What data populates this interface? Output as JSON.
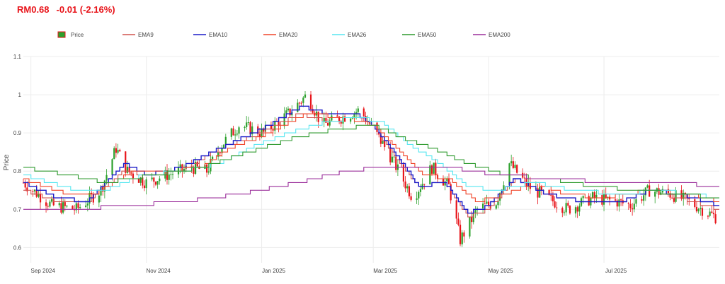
{
  "header": {
    "price": "RM0.68",
    "change": "-0.01 (-2.16%)"
  },
  "colors": {
    "up": "#2ca02c",
    "down": "#e8141a",
    "EMA9": "#d0534f",
    "EMA10": "#1c1cc8",
    "EMA20": "#f0452a",
    "EMA26": "#57e6f0",
    "EMA50": "#2e9a2e",
    "EMA200": "#9b2f9b"
  },
  "chart_data": {
    "type": "line",
    "subtype": "candlestick-with-ema-overlays",
    "title": "",
    "xlabel": "",
    "ylabel": "Price",
    "ylim": [
      0.56,
      1.1
    ],
    "yticks": [
      "0.6",
      "0.7",
      "0.8",
      "0.9",
      "1",
      "1.1"
    ],
    "xrange": [
      "2024-08-28",
      "2025-08-31"
    ],
    "xticks": [
      {
        "date": "2024-09-01",
        "label": "Sep 2024"
      },
      {
        "date": "2024-11-01",
        "label": "Nov 2024"
      },
      {
        "date": "2025-01-01",
        "label": "Jan 2025"
      },
      {
        "date": "2025-03-01",
        "label": "Mar 2025"
      },
      {
        "date": "2025-05-01",
        "label": "May 2025"
      },
      {
        "date": "2025-07-01",
        "label": "Jul 2025"
      }
    ],
    "grid": true,
    "legend_position": "top",
    "legend": [
      "Price",
      "EMA9",
      "EMA10",
      "EMA20",
      "EMA26",
      "EMA50",
      "EMA200"
    ],
    "price_anchors": [
      [
        "2024-08-28",
        0.77
      ],
      [
        "2024-09-12",
        0.71
      ],
      [
        "2024-09-25",
        0.7
      ],
      [
        "2024-10-08",
        0.75
      ],
      [
        "2024-10-16",
        0.86
      ],
      [
        "2024-10-22",
        0.8
      ],
      [
        "2024-11-01",
        0.77
      ],
      [
        "2024-11-12",
        0.79
      ],
      [
        "2024-11-25",
        0.81
      ],
      [
        "2024-12-03",
        0.8
      ],
      [
        "2024-12-11",
        0.87
      ],
      [
        "2024-12-20",
        0.92
      ],
      [
        "2025-01-02",
        0.9
      ],
      [
        "2025-01-15",
        0.95
      ],
      [
        "2025-01-25",
        1.0
      ],
      [
        "2025-02-02",
        0.92
      ],
      [
        "2025-02-12",
        0.94
      ],
      [
        "2025-02-22",
        0.96
      ],
      [
        "2025-03-01",
        0.91
      ],
      [
        "2025-03-10",
        0.84
      ],
      [
        "2025-03-22",
        0.73
      ],
      [
        "2025-04-01",
        0.81
      ],
      [
        "2025-04-10",
        0.76
      ],
      [
        "2025-04-16",
        0.62
      ],
      [
        "2025-04-25",
        0.7
      ],
      [
        "2025-05-05",
        0.72
      ],
      [
        "2025-05-12",
        0.82
      ],
      [
        "2025-05-22",
        0.76
      ],
      [
        "2025-06-01",
        0.73
      ],
      [
        "2025-06-12",
        0.7
      ],
      [
        "2025-06-25",
        0.73
      ],
      [
        "2025-07-08",
        0.72
      ],
      [
        "2025-07-15",
        0.71
      ],
      [
        "2025-07-25",
        0.75
      ],
      [
        "2025-08-05",
        0.74
      ],
      [
        "2025-08-15",
        0.72
      ],
      [
        "2025-08-22",
        0.7
      ],
      [
        "2025-08-29",
        0.68
      ]
    ],
    "series": [
      {
        "name": "EMA9",
        "points": [
          [
            "2024-08-28",
            0.75
          ],
          [
            "2024-09-15",
            0.72
          ],
          [
            "2024-10-01",
            0.72
          ],
          [
            "2024-10-20",
            0.8
          ],
          [
            "2024-11-01",
            0.79
          ],
          [
            "2024-11-20",
            0.8
          ],
          [
            "2024-12-10",
            0.86
          ],
          [
            "2025-01-01",
            0.9
          ],
          [
            "2025-01-20",
            0.95
          ],
          [
            "2025-02-05",
            0.93
          ],
          [
            "2025-02-20",
            0.94
          ],
          [
            "2025-03-01",
            0.92
          ],
          [
            "2025-03-15",
            0.82
          ],
          [
            "2025-03-25",
            0.76
          ],
          [
            "2025-04-08",
            0.77
          ],
          [
            "2025-04-20",
            0.68
          ],
          [
            "2025-05-01",
            0.7
          ],
          [
            "2025-05-15",
            0.78
          ],
          [
            "2025-06-01",
            0.74
          ],
          [
            "2025-06-20",
            0.72
          ],
          [
            "2025-07-10",
            0.72
          ],
          [
            "2025-07-25",
            0.75
          ],
          [
            "2025-08-10",
            0.73
          ],
          [
            "2025-08-31",
            0.7
          ]
        ]
      },
      {
        "name": "EMA10",
        "points": [
          [
            "2024-08-28",
            0.77
          ],
          [
            "2024-09-15",
            0.73
          ],
          [
            "2024-10-01",
            0.72
          ],
          [
            "2024-10-20",
            0.82
          ],
          [
            "2024-11-01",
            0.79
          ],
          [
            "2024-11-20",
            0.81
          ],
          [
            "2024-12-10",
            0.86
          ],
          [
            "2025-01-01",
            0.91
          ],
          [
            "2025-01-22",
            0.97
          ],
          [
            "2025-02-05",
            0.95
          ],
          [
            "2025-02-20",
            0.95
          ],
          [
            "2025-03-01",
            0.92
          ],
          [
            "2025-03-15",
            0.83
          ],
          [
            "2025-03-25",
            0.76
          ],
          [
            "2025-04-08",
            0.77
          ],
          [
            "2025-04-20",
            0.69
          ],
          [
            "2025-05-01",
            0.71
          ],
          [
            "2025-05-15",
            0.78
          ],
          [
            "2025-06-01",
            0.74
          ],
          [
            "2025-06-20",
            0.72
          ],
          [
            "2025-07-10",
            0.72
          ],
          [
            "2025-07-25",
            0.75
          ],
          [
            "2025-08-10",
            0.74
          ],
          [
            "2025-08-31",
            0.71
          ]
        ]
      },
      {
        "name": "EMA20",
        "points": [
          [
            "2024-08-28",
            0.78
          ],
          [
            "2024-09-20",
            0.74
          ],
          [
            "2024-10-05",
            0.74
          ],
          [
            "2024-10-25",
            0.8
          ],
          [
            "2024-11-10",
            0.8
          ],
          [
            "2024-11-30",
            0.81
          ],
          [
            "2024-12-15",
            0.86
          ],
          [
            "2025-01-05",
            0.9
          ],
          [
            "2025-01-25",
            0.95
          ],
          [
            "2025-02-15",
            0.94
          ],
          [
            "2025-03-01",
            0.92
          ],
          [
            "2025-03-15",
            0.85
          ],
          [
            "2025-03-28",
            0.79
          ],
          [
            "2025-04-10",
            0.78
          ],
          [
            "2025-04-25",
            0.72
          ],
          [
            "2025-05-10",
            0.74
          ],
          [
            "2025-05-25",
            0.77
          ],
          [
            "2025-06-10",
            0.74
          ],
          [
            "2025-07-01",
            0.73
          ],
          [
            "2025-07-25",
            0.75
          ],
          [
            "2025-08-15",
            0.74
          ],
          [
            "2025-08-31",
            0.72
          ]
        ]
      },
      {
        "name": "EMA26",
        "points": [
          [
            "2024-08-28",
            0.79
          ],
          [
            "2024-09-25",
            0.75
          ],
          [
            "2024-10-10",
            0.75
          ],
          [
            "2024-10-30",
            0.79
          ],
          [
            "2024-11-20",
            0.8
          ],
          [
            "2024-12-10",
            0.82
          ],
          [
            "2024-12-25",
            0.86
          ],
          [
            "2025-01-15",
            0.9
          ],
          [
            "2025-02-05",
            0.93
          ],
          [
            "2025-02-20",
            0.94
          ],
          [
            "2025-03-05",
            0.93
          ],
          [
            "2025-03-20",
            0.87
          ],
          [
            "2025-04-05",
            0.82
          ],
          [
            "2025-04-20",
            0.76
          ],
          [
            "2025-05-05",
            0.75
          ],
          [
            "2025-05-25",
            0.77
          ],
          [
            "2025-06-15",
            0.75
          ],
          [
            "2025-07-10",
            0.74
          ],
          [
            "2025-07-30",
            0.75
          ],
          [
            "2025-08-31",
            0.73
          ]
        ]
      },
      {
        "name": "EMA50",
        "points": [
          [
            "2024-08-28",
            0.81
          ],
          [
            "2024-09-20",
            0.79
          ],
          [
            "2024-10-10",
            0.77
          ],
          [
            "2024-11-05",
            0.79
          ],
          [
            "2024-12-01",
            0.81
          ],
          [
            "2024-12-25",
            0.85
          ],
          [
            "2025-01-20",
            0.89
          ],
          [
            "2025-02-10",
            0.91
          ],
          [
            "2025-03-01",
            0.92
          ],
          [
            "2025-03-15",
            0.89
          ],
          [
            "2025-04-01",
            0.86
          ],
          [
            "2025-04-20",
            0.82
          ],
          [
            "2025-05-10",
            0.79
          ],
          [
            "2025-06-01",
            0.78
          ],
          [
            "2025-06-25",
            0.76
          ],
          [
            "2025-07-20",
            0.75
          ],
          [
            "2025-08-10",
            0.74
          ],
          [
            "2025-08-31",
            0.73
          ]
        ]
      },
      {
        "name": "EMA200",
        "points": [
          [
            "2024-08-28",
            0.7
          ],
          [
            "2024-09-25",
            0.7
          ],
          [
            "2024-10-20",
            0.71
          ],
          [
            "2024-11-20",
            0.72
          ],
          [
            "2024-12-20",
            0.74
          ],
          [
            "2025-01-20",
            0.77
          ],
          [
            "2025-02-15",
            0.8
          ],
          [
            "2025-03-05",
            0.81
          ],
          [
            "2025-04-10",
            0.81
          ],
          [
            "2025-05-05",
            0.79
          ],
          [
            "2025-06-05",
            0.78
          ],
          [
            "2025-07-05",
            0.77
          ],
          [
            "2025-08-05",
            0.77
          ],
          [
            "2025-08-31",
            0.76
          ]
        ]
      }
    ]
  }
}
